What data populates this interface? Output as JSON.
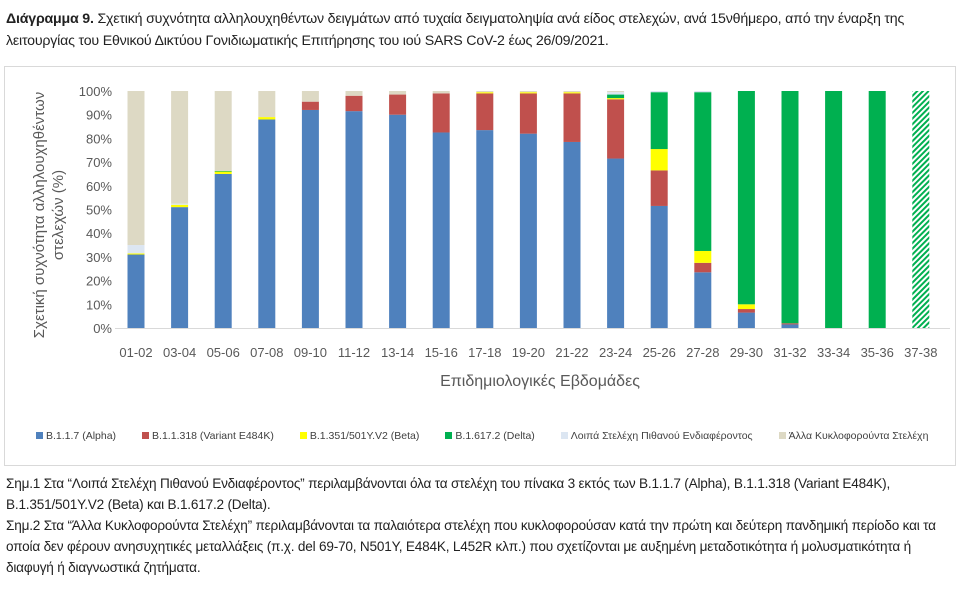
{
  "title": {
    "bold": "Διάγραμμα 9.",
    "text": " Σχετική συχνότητα αλληλουχηθέντων δειγμάτων από τυχαία δειγματοληψία ανά είδος στελεχών, ανά 15νθήμερο, από την έναρξη της λειτουργίας του Εθνικού Δικτύου Γονιδιωματικής Επιτήρησης του ιού SARS CoV-2 έως 26/09/2021."
  },
  "chart_data": {
    "type": "bar",
    "stacked": true,
    "xlabel": "Επιδημιολογικές Εβδομάδες",
    "ylabel": [
      "Σχετική συχνότητα αλληλουχηθέντων",
      "στελεχών (%)"
    ],
    "ylim": [
      0,
      100
    ],
    "yticks": [
      "0%",
      "10%",
      "20%",
      "30%",
      "40%",
      "50%",
      "60%",
      "70%",
      "80%",
      "90%",
      "100%"
    ],
    "legend_position": "bottom",
    "categories": [
      "01-02",
      "03-04",
      "05-06",
      "07-08",
      "09-10",
      "11-12",
      "13-14",
      "15-16",
      "17-18",
      "19-20",
      "21-22",
      "23-24",
      "25-26",
      "27-28",
      "29-30",
      "31-32",
      "33-34",
      "35-36",
      "37-38"
    ],
    "series": [
      {
        "name": "B.1.1.7 (Alpha)",
        "color": "#4f81bd",
        "values": [
          31,
          51,
          65,
          88,
          92,
          91.5,
          90,
          82.5,
          83.5,
          82,
          78.5,
          71.5,
          51.5,
          23.5,
          6.5,
          1.5,
          0,
          0,
          0
        ]
      },
      {
        "name": "B.1.1.318 (Variant E484K)",
        "color": "#c0504d",
        "values": [
          0,
          0,
          0,
          0,
          3.5,
          6.5,
          8.5,
          16.5,
          15.5,
          17,
          20.5,
          25,
          15,
          4,
          1.5,
          0.5,
          0,
          0,
          0
        ]
      },
      {
        "name": "B.1.351/501Y.V2 (Beta)",
        "color": "#ffff00",
        "values": [
          0.5,
          1,
          1,
          1,
          0,
          0,
          0,
          0,
          0.5,
          0.5,
          0.5,
          0.5,
          9,
          5,
          2,
          0,
          0,
          0,
          0
        ]
      },
      {
        "name": "B.1.617.2 (Delta)",
        "color": "#00b050",
        "values": [
          0,
          0,
          0.3,
          0,
          0,
          0,
          0,
          0,
          0,
          0,
          0,
          1.5,
          24,
          67,
          90,
          98,
          100,
          100,
          100
        ]
      },
      {
        "name": "Λοιπά Στελέχη Πιθανού Ενδιαφέροντος",
        "color": "#dce6f2",
        "values": [
          3.5,
          0.5,
          0,
          0,
          0,
          0,
          0,
          0,
          0,
          0,
          0,
          1,
          0.5,
          0.5,
          0,
          0,
          0,
          0,
          0
        ]
      },
      {
        "name": "Άλλα Κυκλοφορούντα Στελέχη",
        "color": "#ddd9c4",
        "values": [
          65,
          47.5,
          33.7,
          11,
          4.5,
          2,
          1.5,
          1,
          0.5,
          0.5,
          0.5,
          0.5,
          0,
          0,
          0,
          0,
          0,
          0,
          0
        ]
      }
    ],
    "hatched_categories": [
      "37-38"
    ]
  },
  "notes": [
    "Σημ.1 Στα “Λοιπά Στελέχη Πιθανού Ενδιαφέροντος” περιλαμβάνονται όλα τα στελέχη του πίνακα 3 εκτός των B.1.1.7 (Alpha), B.1.1.318 (Variant E484K), B.1.351/501Y.V2 (Beta) και B.1.617.2 (Delta).",
    "Σημ.2 Στα “Άλλα Κυκλοφορούντα Στελέχη” περιλαμβάνονται τα παλαιότερα στελέχη που κυκλοφορούσαν κατά την πρώτη και δεύτερη πανδημική περίοδο και τα οποία δεν φέρουν ανησυχητικές μεταλλάξεις (π.χ. del 69-70, N501Y, E484K, L452R κλπ.) που σχετίζονται με αυξημένη μεταδοτικότητα ή μολυσματικότητα ή διαφυγή ή διαγνωστικά ζητήματα."
  ]
}
